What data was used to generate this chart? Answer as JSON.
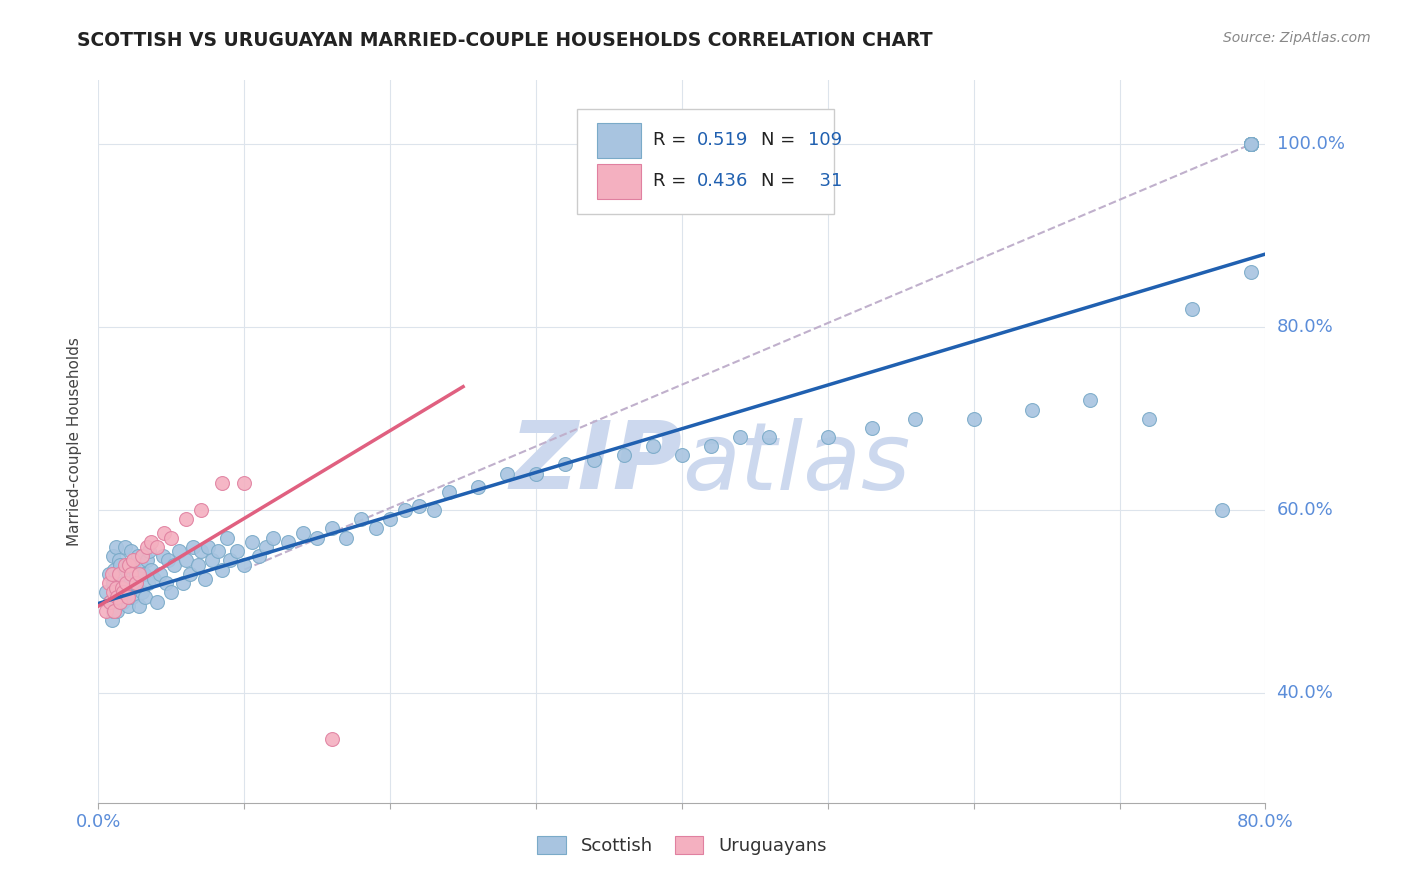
{
  "title": "SCOTTISH VS URUGUAYAN MARRIED-COUPLE HOUSEHOLDS CORRELATION CHART",
  "source": "Source: ZipAtlas.com",
  "ylabel": "Married-couple Households",
  "ytick_labels": [
    "40.0%",
    "60.0%",
    "80.0%",
    "100.0%"
  ],
  "ytick_values": [
    0.4,
    0.6,
    0.8,
    1.0
  ],
  "xlim": [
    0.0,
    0.8
  ],
  "ylim": [
    0.28,
    1.07
  ],
  "scottish_R": 0.519,
  "scottish_N": 109,
  "uruguayan_R": 0.436,
  "uruguayan_N": 31,
  "scottish_color": "#a8c4e0",
  "scottish_edge_color": "#7aaac8",
  "scottish_line_color": "#2060b0",
  "uruguayan_color": "#f4b0c0",
  "uruguayan_edge_color": "#e080a0",
  "uruguayan_line_color": "#e06080",
  "dashed_line_color": "#c0b0cc",
  "watermark_color": "#ccd8ee",
  "background_color": "#ffffff",
  "scottish_x": [
    0.005,
    0.007,
    0.008,
    0.009,
    0.01,
    0.01,
    0.01,
    0.011,
    0.012,
    0.012,
    0.013,
    0.014,
    0.014,
    0.015,
    0.015,
    0.016,
    0.017,
    0.018,
    0.018,
    0.019,
    0.02,
    0.02,
    0.021,
    0.022,
    0.022,
    0.023,
    0.024,
    0.025,
    0.026,
    0.027,
    0.028,
    0.029,
    0.03,
    0.031,
    0.032,
    0.033,
    0.034,
    0.035,
    0.036,
    0.038,
    0.04,
    0.042,
    0.044,
    0.046,
    0.048,
    0.05,
    0.052,
    0.055,
    0.058,
    0.06,
    0.063,
    0.065,
    0.068,
    0.07,
    0.073,
    0.075,
    0.078,
    0.082,
    0.085,
    0.088,
    0.09,
    0.095,
    0.1,
    0.105,
    0.11,
    0.115,
    0.12,
    0.13,
    0.14,
    0.15,
    0.16,
    0.17,
    0.18,
    0.19,
    0.2,
    0.21,
    0.22,
    0.23,
    0.24,
    0.26,
    0.28,
    0.3,
    0.32,
    0.34,
    0.36,
    0.38,
    0.4,
    0.42,
    0.44,
    0.46,
    0.5,
    0.53,
    0.56,
    0.6,
    0.64,
    0.68,
    0.72,
    0.75,
    0.77,
    0.79,
    0.79,
    0.79,
    0.79,
    0.79,
    0.79,
    0.79,
    0.79,
    0.79,
    0.79
  ],
  "scottish_y": [
    0.51,
    0.53,
    0.5,
    0.48,
    0.52,
    0.55,
    0.49,
    0.535,
    0.51,
    0.56,
    0.49,
    0.545,
    0.515,
    0.505,
    0.54,
    0.52,
    0.5,
    0.515,
    0.56,
    0.535,
    0.495,
    0.54,
    0.51,
    0.525,
    0.555,
    0.505,
    0.54,
    0.52,
    0.53,
    0.55,
    0.495,
    0.54,
    0.51,
    0.53,
    0.505,
    0.545,
    0.52,
    0.555,
    0.535,
    0.525,
    0.5,
    0.53,
    0.55,
    0.52,
    0.545,
    0.51,
    0.54,
    0.555,
    0.52,
    0.545,
    0.53,
    0.56,
    0.54,
    0.555,
    0.525,
    0.56,
    0.545,
    0.555,
    0.535,
    0.57,
    0.545,
    0.555,
    0.54,
    0.565,
    0.55,
    0.56,
    0.57,
    0.565,
    0.575,
    0.57,
    0.58,
    0.57,
    0.59,
    0.58,
    0.59,
    0.6,
    0.605,
    0.6,
    0.62,
    0.625,
    0.64,
    0.64,
    0.65,
    0.655,
    0.66,
    0.67,
    0.66,
    0.67,
    0.68,
    0.68,
    0.68,
    0.69,
    0.7,
    0.7,
    0.71,
    0.72,
    0.7,
    0.82,
    0.6,
    0.86,
    1.0,
    1.0,
    1.0,
    1.0,
    1.0,
    1.0,
    1.0,
    1.0,
    1.0
  ],
  "uruguayan_x": [
    0.005,
    0.007,
    0.008,
    0.009,
    0.01,
    0.011,
    0.012,
    0.013,
    0.014,
    0.015,
    0.016,
    0.017,
    0.018,
    0.019,
    0.02,
    0.021,
    0.022,
    0.024,
    0.026,
    0.028,
    0.03,
    0.033,
    0.036,
    0.04,
    0.045,
    0.05,
    0.06,
    0.07,
    0.085,
    0.1,
    0.16
  ],
  "uruguayan_y": [
    0.49,
    0.52,
    0.5,
    0.53,
    0.51,
    0.49,
    0.515,
    0.505,
    0.53,
    0.5,
    0.515,
    0.51,
    0.54,
    0.52,
    0.505,
    0.54,
    0.53,
    0.545,
    0.52,
    0.53,
    0.55,
    0.56,
    0.565,
    0.56,
    0.575,
    0.57,
    0.59,
    0.6,
    0.63,
    0.63,
    0.35
  ]
}
